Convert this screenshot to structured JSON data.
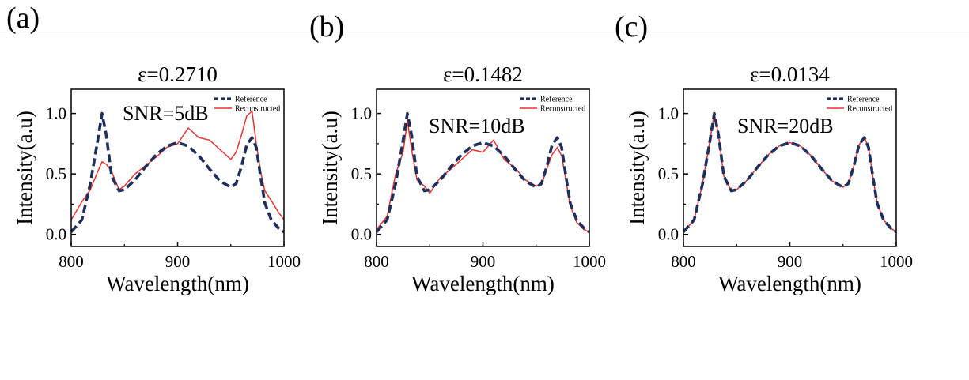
{
  "colors": {
    "reference": "#1f2f5c",
    "reconstructed": "#e8332f",
    "axis": "#000000",
    "frame_line": "#e6e6e6"
  },
  "chart_data": [
    {
      "type": "line",
      "panel_label": "(a)",
      "title": "ε=0.2710",
      "annotation": "SNR=5dB",
      "xlabel": "Wavelength(nm)",
      "ylabel": "Intensity(a.u)",
      "xlim": [
        800,
        1000
      ],
      "ylim": [
        -0.1,
        1.2
      ],
      "xticks": [
        "800",
        "900",
        "1000"
      ],
      "yticks": [
        "0.0",
        "0.5",
        "1.0"
      ],
      "legend_position": "top-right",
      "x": [
        800,
        810,
        818,
        825,
        829,
        833,
        838,
        845,
        850,
        860,
        870,
        880,
        890,
        900,
        910,
        920,
        930,
        940,
        950,
        955,
        960,
        965,
        970,
        974,
        978,
        982,
        988,
        995,
        1000
      ],
      "series": [
        {
          "name": "Reference",
          "style": "dashed",
          "values": [
            0.02,
            0.12,
            0.42,
            0.78,
            1.0,
            0.82,
            0.48,
            0.36,
            0.37,
            0.45,
            0.56,
            0.66,
            0.73,
            0.76,
            0.73,
            0.65,
            0.54,
            0.44,
            0.39,
            0.42,
            0.56,
            0.74,
            0.8,
            0.72,
            0.48,
            0.26,
            0.12,
            0.05,
            0.02
          ]
        },
        {
          "name": "Reconstructed",
          "style": "solid",
          "values": [
            0.12,
            0.27,
            0.37,
            0.52,
            0.6,
            0.58,
            0.52,
            0.37,
            0.4,
            0.5,
            0.57,
            0.64,
            0.72,
            0.75,
            0.88,
            0.8,
            0.78,
            0.7,
            0.62,
            0.68,
            0.82,
            0.98,
            1.02,
            0.75,
            0.52,
            0.36,
            0.28,
            0.18,
            0.12
          ]
        }
      ]
    },
    {
      "type": "line",
      "panel_label": "(b)",
      "title": "ε=0.1482",
      "annotation": "SNR=10dB",
      "xlabel": "Wavelength(nm)",
      "ylabel": "Intensity(a.u)",
      "xlim": [
        800,
        1000
      ],
      "ylim": [
        -0.1,
        1.2
      ],
      "xticks": [
        "800",
        "900",
        "1000"
      ],
      "yticks": [
        "0.0",
        "0.5",
        "1.0"
      ],
      "legend_position": "top-right",
      "x": [
        800,
        810,
        818,
        825,
        829,
        833,
        838,
        845,
        850,
        860,
        870,
        880,
        890,
        900,
        910,
        920,
        930,
        940,
        950,
        955,
        960,
        965,
        970,
        974,
        978,
        982,
        988,
        995,
        1000
      ],
      "series": [
        {
          "name": "Reference",
          "style": "dashed",
          "values": [
            0.02,
            0.12,
            0.42,
            0.78,
            1.0,
            0.82,
            0.48,
            0.36,
            0.37,
            0.45,
            0.56,
            0.66,
            0.73,
            0.76,
            0.73,
            0.65,
            0.54,
            0.44,
            0.39,
            0.42,
            0.56,
            0.74,
            0.8,
            0.72,
            0.48,
            0.26,
            0.12,
            0.05,
            0.02
          ]
        },
        {
          "name": "Reconstructed",
          "style": "solid",
          "values": [
            0.04,
            0.15,
            0.5,
            0.68,
            0.94,
            0.7,
            0.45,
            0.4,
            0.34,
            0.47,
            0.54,
            0.62,
            0.7,
            0.68,
            0.78,
            0.62,
            0.55,
            0.45,
            0.4,
            0.41,
            0.54,
            0.66,
            0.72,
            0.65,
            0.45,
            0.24,
            0.1,
            0.04,
            0.02
          ]
        }
      ]
    },
    {
      "type": "line",
      "panel_label": "(c)",
      "title": "ε=0.0134",
      "annotation": "SNR=20dB",
      "xlabel": "Wavelength(nm)",
      "ylabel": "Intensity(a.u)",
      "xlim": [
        800,
        1000
      ],
      "ylim": [
        -0.1,
        1.2
      ],
      "xticks": [
        "800",
        "900",
        "1000"
      ],
      "yticks": [
        "0.0",
        "0.5",
        "1.0"
      ],
      "legend_position": "top-right",
      "x": [
        800,
        810,
        818,
        825,
        829,
        833,
        838,
        845,
        850,
        860,
        870,
        880,
        890,
        900,
        910,
        920,
        930,
        940,
        950,
        955,
        960,
        965,
        970,
        974,
        978,
        982,
        988,
        995,
        1000
      ],
      "series": [
        {
          "name": "Reference",
          "style": "dashed",
          "values": [
            0.02,
            0.12,
            0.42,
            0.78,
            1.0,
            0.82,
            0.48,
            0.36,
            0.37,
            0.45,
            0.56,
            0.66,
            0.73,
            0.76,
            0.73,
            0.65,
            0.54,
            0.44,
            0.39,
            0.42,
            0.56,
            0.74,
            0.8,
            0.72,
            0.48,
            0.26,
            0.12,
            0.05,
            0.02
          ]
        },
        {
          "name": "Reconstructed",
          "style": "solid",
          "values": [
            0.02,
            0.12,
            0.42,
            0.78,
            1.0,
            0.82,
            0.48,
            0.36,
            0.37,
            0.45,
            0.56,
            0.66,
            0.73,
            0.76,
            0.73,
            0.65,
            0.54,
            0.44,
            0.39,
            0.42,
            0.56,
            0.74,
            0.8,
            0.72,
            0.48,
            0.26,
            0.12,
            0.05,
            0.02
          ]
        }
      ]
    }
  ]
}
